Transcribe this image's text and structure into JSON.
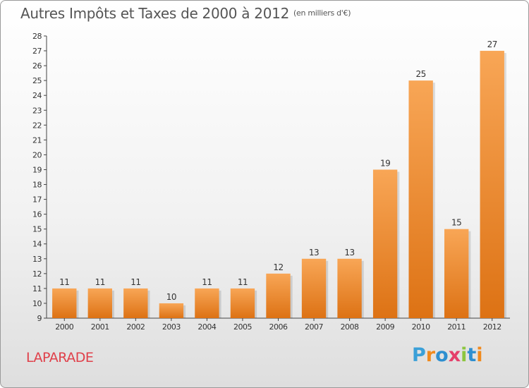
{
  "title": "Autres Impôts et Taxes de 2000 à 2012",
  "unit": "(en milliers d'€)",
  "commune": "LAPARADE",
  "logo": {
    "letters": [
      "P",
      "r",
      "o",
      "x",
      "i",
      "t",
      "i"
    ],
    "colors": [
      "#3aa0d8",
      "#f08a1e",
      "#2e8fd0",
      "#e53f6a",
      "#8cc63f",
      "#2e8fd0",
      "#f08a1e"
    ]
  },
  "chart_data": {
    "type": "bar",
    "categories": [
      "2000",
      "2001",
      "2002",
      "2003",
      "2004",
      "2005",
      "2006",
      "2007",
      "2008",
      "2009",
      "2010",
      "2011",
      "2012"
    ],
    "values": [
      11,
      11,
      11,
      10,
      11,
      11,
      12,
      13,
      13,
      19,
      25,
      15,
      27
    ],
    "title": "Autres Impôts et Taxes de 2000 à 2012",
    "xlabel": "",
    "ylabel": "",
    "ylim": [
      9,
      28
    ],
    "yticks": [
      9,
      10,
      11,
      12,
      13,
      14,
      15,
      16,
      17,
      18,
      19,
      20,
      21,
      22,
      23,
      24,
      25,
      26,
      27,
      28
    ],
    "grid": false,
    "bar_color": "#f0862a"
  }
}
